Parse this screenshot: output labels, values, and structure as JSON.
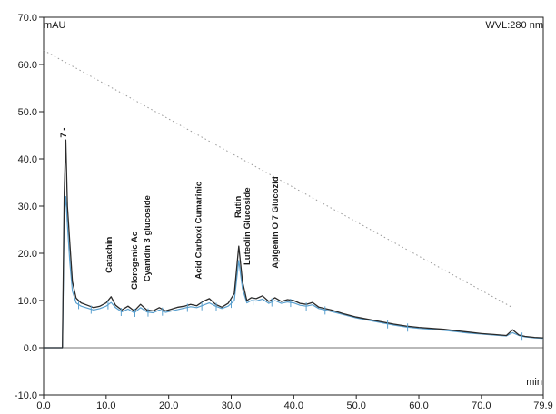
{
  "chart_data": {
    "type": "line",
    "ylabel": "mAU",
    "xlabel": "min",
    "wavelength_label": "WVL:280 nm",
    "xlim": [
      0,
      79.9
    ],
    "ylim": [
      -10,
      70
    ],
    "x_ticks": [
      "0.0",
      "10.0",
      "20.0",
      "30.0",
      "40.0",
      "50.0",
      "60.0",
      "70.0",
      "79.9"
    ],
    "y_ticks": [
      "-10.0",
      "0.0",
      "10.0",
      "20.0",
      "30.0",
      "40.0",
      "50.0",
      "60.0",
      "70.0"
    ],
    "grid": false,
    "gradient": {
      "from": [
        0,
        63
      ],
      "to": [
        75,
        8.5
      ]
    },
    "series": [
      {
        "color": "#2a2a2a",
        "x": [
          0,
          3.0,
          3.3,
          3.55,
          3.8,
          4.2,
          4.6,
          5.2,
          6.0,
          7.0,
          8.0,
          9.0,
          10.0,
          10.8,
          11.5,
          12.5,
          13.5,
          14.5,
          15.5,
          16.5,
          17.5,
          18.5,
          19.5,
          20.5,
          21.5,
          22.5,
          23.5,
          24.5,
          25.5,
          26.5,
          27.5,
          28.5,
          29.5,
          30.5,
          31.2,
          31.8,
          32.5,
          33.2,
          34.0,
          35.0,
          36.0,
          37.0,
          38.0,
          39.0,
          40.0,
          41.0,
          42.0,
          43.0,
          44.0,
          46.0,
          48.0,
          50.0,
          52.0,
          54.0,
          56.0,
          58.0,
          60.0,
          62.0,
          64.0,
          66.0,
          68.0,
          70.0,
          72.0,
          74.0,
          75.0,
          76.0,
          77.0,
          78.5,
          79.9
        ],
        "values": [
          0,
          0,
          33,
          44,
          30,
          22,
          14,
          10.5,
          9.5,
          9.0,
          8.5,
          8.8,
          9.5,
          10.8,
          9.0,
          8.0,
          8.8,
          7.8,
          9.2,
          8.0,
          7.8,
          8.5,
          7.8,
          8.2,
          8.6,
          8.8,
          9.2,
          8.9,
          9.8,
          10.4,
          9.2,
          8.6,
          9.4,
          11.5,
          21.5,
          14.0,
          10.0,
          10.6,
          10.4,
          11.0,
          9.8,
          10.6,
          9.8,
          10.2,
          10.0,
          9.4,
          9.2,
          9.6,
          8.6,
          8.0,
          7.2,
          6.5,
          6.0,
          5.5,
          5.0,
          4.6,
          4.3,
          4.1,
          3.9,
          3.6,
          3.3,
          3.0,
          2.8,
          2.6,
          3.8,
          2.7,
          2.4,
          2.2,
          2.1
        ]
      },
      {
        "color": "#5aa0cf",
        "x": [
          0,
          3.0,
          3.3,
          3.55,
          3.8,
          4.2,
          4.6,
          5.2,
          6.0,
          7.0,
          8.0,
          9.0,
          10.0,
          10.8,
          11.5,
          12.5,
          13.5,
          14.5,
          15.5,
          16.5,
          17.5,
          18.5,
          19.5,
          20.5,
          21.5,
          22.5,
          23.5,
          24.5,
          25.5,
          26.5,
          27.5,
          28.5,
          29.5,
          30.5,
          31.2,
          31.8,
          32.5,
          33.2,
          34.0,
          35.0,
          36.0,
          37.0,
          38.0,
          39.0,
          40.0,
          41.0,
          42.0,
          43.0,
          44.0,
          46.0,
          48.0,
          50.0,
          52.0,
          54.0,
          56.0,
          58.0,
          60.0,
          62.0,
          64.0,
          66.0,
          68.0,
          70.0,
          72.0,
          74.0,
          75.0,
          76.0,
          77.0,
          78.5,
          79.9
        ],
        "values": [
          0,
          0,
          28,
          32,
          26,
          18,
          12,
          9.5,
          8.8,
          8.4,
          8.0,
          8.3,
          8.8,
          9.6,
          8.5,
          7.6,
          8.2,
          7.4,
          8.5,
          7.6,
          7.4,
          8.0,
          7.5,
          7.8,
          8.1,
          8.4,
          8.7,
          8.5,
          9.0,
          9.5,
          8.8,
          8.3,
          8.8,
          10.0,
          18.5,
          12.5,
          9.5,
          10.0,
          9.9,
          10.3,
          9.4,
          10.0,
          9.4,
          9.7,
          9.5,
          9.0,
          8.8,
          9.1,
          8.3,
          7.7,
          7.0,
          6.3,
          5.8,
          5.3,
          4.8,
          4.4,
          4.1,
          3.9,
          3.7,
          3.4,
          3.1,
          2.9,
          2.7,
          2.5,
          3.2,
          2.6,
          2.3,
          2.1,
          2.0
        ]
      }
    ],
    "baseline_ticks_x": [
      5.6,
      7.6,
      10.3,
      12.4,
      14.6,
      16.7,
      19.0,
      23.0,
      25.3,
      27.6,
      30.0,
      33.5,
      36.5,
      39.5,
      42.0,
      45.0,
      55.0,
      58.2,
      76.5
    ],
    "annotations": [
      {
        "text": "7 -",
        "x": 3.6,
        "y": 44.5
      },
      {
        "text": "Catachin",
        "x": 10.9,
        "y": 15.8
      },
      {
        "text": "Clorogenic Ac",
        "x": 15.0,
        "y": 12.3
      },
      {
        "text": "Cyanidin 3 glucoside",
        "x": 17.0,
        "y": 14.0
      },
      {
        "text": "Acid Carboxi Cumarinic",
        "x": 25.2,
        "y": 14.5
      },
      {
        "text": "Rutin",
        "x": 31.5,
        "y": 27.5
      },
      {
        "text": "Luteolin Glucoside",
        "x": 33.0,
        "y": 17.5
      },
      {
        "text": "Apigenin O 7 Glucozid",
        "x": 37.5,
        "y": 16.8
      }
    ]
  }
}
